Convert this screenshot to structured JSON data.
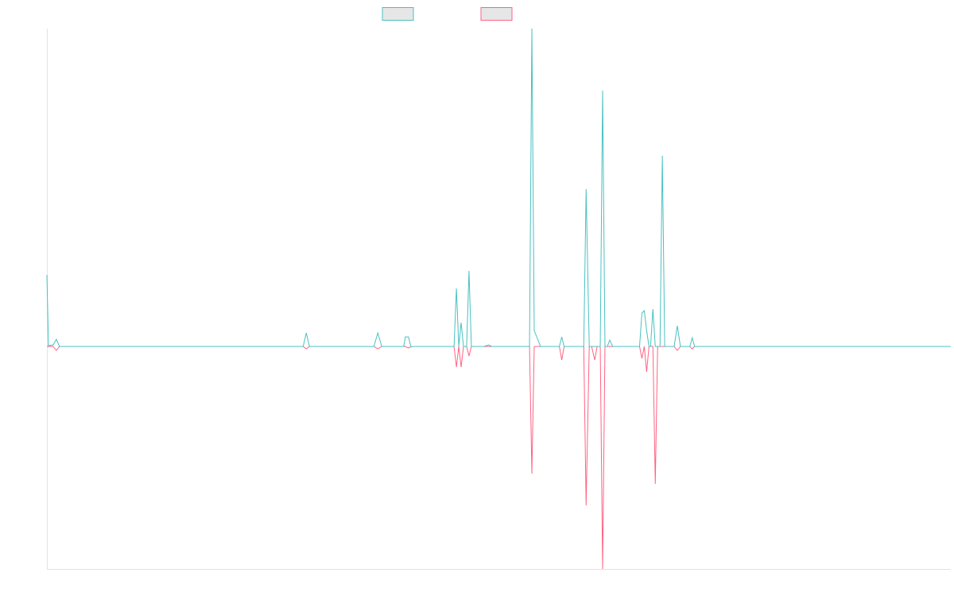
{
  "chart_data": {
    "type": "line",
    "title": "",
    "xlabel": "",
    "ylabel": "",
    "grid": false,
    "legend_placement": "top-center",
    "ylim": [
      -280,
      400
    ],
    "series": [
      {
        "name": "",
        "color": "#4BC0C0",
        "legend_fill": "#E6E6E6",
        "points": [
          [
            0,
            90
          ],
          [
            2,
            1
          ],
          [
            8,
            2
          ],
          [
            12,
            9
          ],
          [
            16,
            0
          ],
          [
            24,
            0
          ],
          [
            320,
            0
          ],
          [
            326,
            0
          ],
          [
            330,
            17
          ],
          [
            334,
            0
          ],
          [
            340,
            0
          ],
          [
            410,
            0
          ],
          [
            416,
            0
          ],
          [
            421,
            17
          ],
          [
            426,
            0
          ],
          [
            446,
            0
          ],
          [
            454,
            0
          ],
          [
            456,
            12
          ],
          [
            460,
            12
          ],
          [
            463,
            0
          ],
          [
            468,
            0
          ],
          [
            472,
            0
          ],
          [
            474,
            0
          ],
          [
            510,
            0
          ],
          [
            518,
            0
          ],
          [
            521,
            73
          ],
          [
            524,
            0
          ],
          [
            527,
            30
          ],
          [
            530,
            0
          ],
          [
            534,
            0
          ],
          [
            537,
            95
          ],
          [
            540,
            0
          ],
          [
            556,
            0
          ],
          [
            562,
            2
          ],
          [
            566,
            0
          ],
          [
            610,
            0
          ],
          [
            614,
            0
          ],
          [
            617,
            400
          ],
          [
            620,
            20
          ],
          [
            624,
            10
          ],
          [
            628,
            0
          ],
          [
            650,
            0
          ],
          [
            652,
            0
          ],
          [
            655,
            12
          ],
          [
            658,
            0
          ],
          [
            680,
            0
          ],
          [
            683,
            0
          ],
          [
            686,
            198
          ],
          [
            690,
            0
          ],
          [
            693,
            0
          ],
          [
            697,
            0
          ],
          [
            700,
            0
          ],
          [
            704,
            0
          ],
          [
            707,
            322
          ],
          [
            710,
            0
          ],
          [
            713,
            0
          ],
          [
            716,
            8
          ],
          [
            720,
            0
          ],
          [
            750,
            0
          ],
          [
            754,
            0
          ],
          [
            757,
            42
          ],
          [
            760,
            45
          ],
          [
            763,
            20
          ],
          [
            766,
            0
          ],
          [
            768,
            0
          ],
          [
            771,
            47
          ],
          [
            774,
            0
          ],
          [
            777,
            0
          ],
          [
            780,
            0
          ],
          [
            783,
            240
          ],
          [
            786,
            0
          ],
          [
            796,
            0
          ],
          [
            798,
            0
          ],
          [
            802,
            26
          ],
          [
            806,
            0
          ],
          [
            816,
            0
          ],
          [
            818,
            0
          ],
          [
            821,
            11
          ],
          [
            824,
            0
          ],
          [
            826,
            0
          ],
          [
            829,
            0
          ],
          [
            832,
            0
          ],
          [
            856,
            0
          ],
          [
            860,
            0
          ],
          [
            864,
            0
          ],
          [
            870,
            0
          ],
          [
            875,
            0
          ],
          [
            878,
            0
          ],
          [
            1150,
            0
          ]
        ]
      },
      {
        "name": "",
        "color": "#FF6384",
        "legend_fill": "#E6E6E6",
        "points": [
          [
            0,
            0
          ],
          [
            8,
            0
          ],
          [
            12,
            -5
          ],
          [
            16,
            0
          ],
          [
            24,
            0
          ],
          [
            326,
            0
          ],
          [
            330,
            -3
          ],
          [
            334,
            0
          ],
          [
            416,
            0
          ],
          [
            421,
            -3
          ],
          [
            426,
            0
          ],
          [
            456,
            0
          ],
          [
            460,
            -2
          ],
          [
            464,
            0
          ],
          [
            518,
            0
          ],
          [
            521,
            -26
          ],
          [
            524,
            0
          ],
          [
            527,
            -26
          ],
          [
            530,
            0
          ],
          [
            534,
            0
          ],
          [
            537,
            -12
          ],
          [
            540,
            0
          ],
          [
            614,
            0
          ],
          [
            617,
            -160
          ],
          [
            620,
            0
          ],
          [
            652,
            0
          ],
          [
            655,
            -17
          ],
          [
            658,
            0
          ],
          [
            683,
            0
          ],
          [
            686,
            -200
          ],
          [
            690,
            0
          ],
          [
            693,
            0
          ],
          [
            697,
            -17
          ],
          [
            700,
            0
          ],
          [
            704,
            0
          ],
          [
            707,
            -280
          ],
          [
            710,
            0
          ],
          [
            754,
            0
          ],
          [
            757,
            -15
          ],
          [
            760,
            0
          ],
          [
            763,
            -32
          ],
          [
            766,
            0
          ],
          [
            771,
            0
          ],
          [
            774,
            -173
          ],
          [
            777,
            0
          ],
          [
            798,
            0
          ],
          [
            802,
            -5
          ],
          [
            806,
            0
          ],
          [
            818,
            0
          ],
          [
            821,
            -3
          ],
          [
            824,
            0
          ],
          [
            1150,
            0
          ]
        ]
      }
    ]
  }
}
